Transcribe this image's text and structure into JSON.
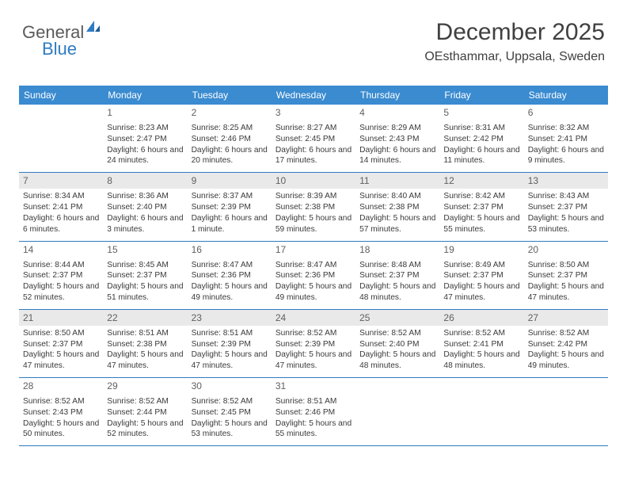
{
  "brand": {
    "text1": "General",
    "text2": "Blue"
  },
  "title": "December 2025",
  "location": "OEsthammar, Uppsala, Sweden",
  "header_color": "#3a8bd0",
  "divider_color": "#2f7bc1",
  "alt_bg": "#e9e9e9",
  "dow": [
    "Sunday",
    "Monday",
    "Tuesday",
    "Wednesday",
    "Thursday",
    "Friday",
    "Saturday"
  ],
  "weeks": [
    [
      {
        "d": "",
        "sr": "",
        "ss": "",
        "dl": "",
        "alt": false
      },
      {
        "d": "1",
        "sr": "8:23 AM",
        "ss": "2:47 PM",
        "dl": "6 hours and 24 minutes.",
        "alt": false
      },
      {
        "d": "2",
        "sr": "8:25 AM",
        "ss": "2:46 PM",
        "dl": "6 hours and 20 minutes.",
        "alt": false
      },
      {
        "d": "3",
        "sr": "8:27 AM",
        "ss": "2:45 PM",
        "dl": "6 hours and 17 minutes.",
        "alt": false
      },
      {
        "d": "4",
        "sr": "8:29 AM",
        "ss": "2:43 PM",
        "dl": "6 hours and 14 minutes.",
        "alt": false
      },
      {
        "d": "5",
        "sr": "8:31 AM",
        "ss": "2:42 PM",
        "dl": "6 hours and 11 minutes.",
        "alt": false
      },
      {
        "d": "6",
        "sr": "8:32 AM",
        "ss": "2:41 PM",
        "dl": "6 hours and 9 minutes.",
        "alt": false
      }
    ],
    [
      {
        "d": "7",
        "sr": "8:34 AM",
        "ss": "2:41 PM",
        "dl": "6 hours and 6 minutes.",
        "alt": true
      },
      {
        "d": "8",
        "sr": "8:36 AM",
        "ss": "2:40 PM",
        "dl": "6 hours and 3 minutes.",
        "alt": true
      },
      {
        "d": "9",
        "sr": "8:37 AM",
        "ss": "2:39 PM",
        "dl": "6 hours and 1 minute.",
        "alt": true
      },
      {
        "d": "10",
        "sr": "8:39 AM",
        "ss": "2:38 PM",
        "dl": "5 hours and 59 minutes.",
        "alt": true
      },
      {
        "d": "11",
        "sr": "8:40 AM",
        "ss": "2:38 PM",
        "dl": "5 hours and 57 minutes.",
        "alt": true
      },
      {
        "d": "12",
        "sr": "8:42 AM",
        "ss": "2:37 PM",
        "dl": "5 hours and 55 minutes.",
        "alt": true
      },
      {
        "d": "13",
        "sr": "8:43 AM",
        "ss": "2:37 PM",
        "dl": "5 hours and 53 minutes.",
        "alt": true
      }
    ],
    [
      {
        "d": "14",
        "sr": "8:44 AM",
        "ss": "2:37 PM",
        "dl": "5 hours and 52 minutes.",
        "alt": false
      },
      {
        "d": "15",
        "sr": "8:45 AM",
        "ss": "2:37 PM",
        "dl": "5 hours and 51 minutes.",
        "alt": false
      },
      {
        "d": "16",
        "sr": "8:47 AM",
        "ss": "2:36 PM",
        "dl": "5 hours and 49 minutes.",
        "alt": false
      },
      {
        "d": "17",
        "sr": "8:47 AM",
        "ss": "2:36 PM",
        "dl": "5 hours and 49 minutes.",
        "alt": false
      },
      {
        "d": "18",
        "sr": "8:48 AM",
        "ss": "2:37 PM",
        "dl": "5 hours and 48 minutes.",
        "alt": false
      },
      {
        "d": "19",
        "sr": "8:49 AM",
        "ss": "2:37 PM",
        "dl": "5 hours and 47 minutes.",
        "alt": false
      },
      {
        "d": "20",
        "sr": "8:50 AM",
        "ss": "2:37 PM",
        "dl": "5 hours and 47 minutes.",
        "alt": false
      }
    ],
    [
      {
        "d": "21",
        "sr": "8:50 AM",
        "ss": "2:37 PM",
        "dl": "5 hours and 47 minutes.",
        "alt": true
      },
      {
        "d": "22",
        "sr": "8:51 AM",
        "ss": "2:38 PM",
        "dl": "5 hours and 47 minutes.",
        "alt": true
      },
      {
        "d": "23",
        "sr": "8:51 AM",
        "ss": "2:39 PM",
        "dl": "5 hours and 47 minutes.",
        "alt": true
      },
      {
        "d": "24",
        "sr": "8:52 AM",
        "ss": "2:39 PM",
        "dl": "5 hours and 47 minutes.",
        "alt": true
      },
      {
        "d": "25",
        "sr": "8:52 AM",
        "ss": "2:40 PM",
        "dl": "5 hours and 48 minutes.",
        "alt": true
      },
      {
        "d": "26",
        "sr": "8:52 AM",
        "ss": "2:41 PM",
        "dl": "5 hours and 48 minutes.",
        "alt": true
      },
      {
        "d": "27",
        "sr": "8:52 AM",
        "ss": "2:42 PM",
        "dl": "5 hours and 49 minutes.",
        "alt": true
      }
    ],
    [
      {
        "d": "28",
        "sr": "8:52 AM",
        "ss": "2:43 PM",
        "dl": "5 hours and 50 minutes.",
        "alt": false
      },
      {
        "d": "29",
        "sr": "8:52 AM",
        "ss": "2:44 PM",
        "dl": "5 hours and 52 minutes.",
        "alt": false
      },
      {
        "d": "30",
        "sr": "8:52 AM",
        "ss": "2:45 PM",
        "dl": "5 hours and 53 minutes.",
        "alt": false
      },
      {
        "d": "31",
        "sr": "8:51 AM",
        "ss": "2:46 PM",
        "dl": "5 hours and 55 minutes.",
        "alt": false
      },
      {
        "d": "",
        "sr": "",
        "ss": "",
        "dl": "",
        "alt": false
      },
      {
        "d": "",
        "sr": "",
        "ss": "",
        "dl": "",
        "alt": false
      },
      {
        "d": "",
        "sr": "",
        "ss": "",
        "dl": "",
        "alt": false
      }
    ]
  ],
  "labels": {
    "sunrise": "Sunrise: ",
    "sunset": "Sunset: ",
    "daylight": "Daylight: "
  }
}
